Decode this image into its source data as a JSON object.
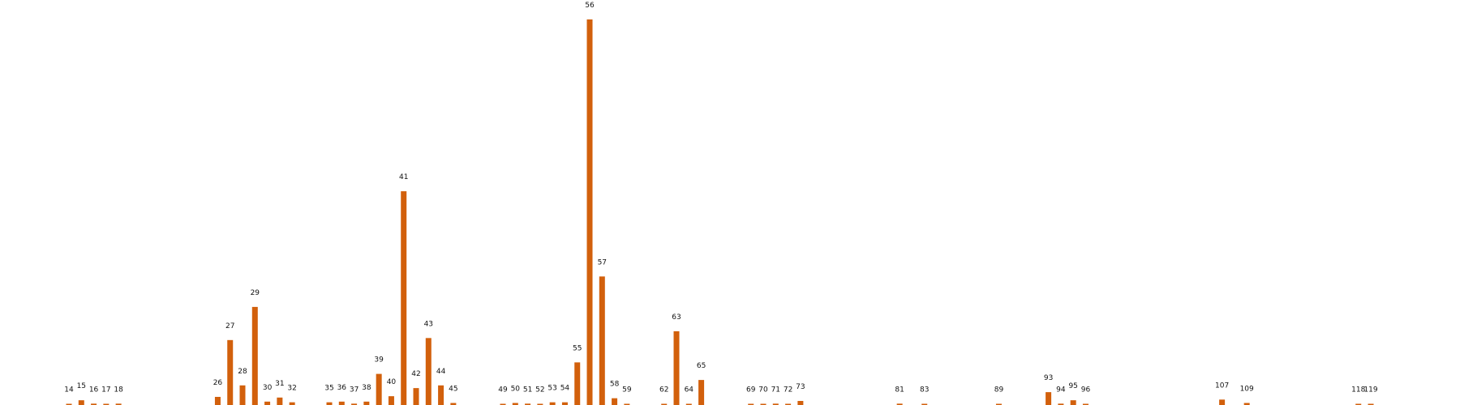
{
  "chart_data": {
    "type": "bar",
    "title": "",
    "xlabel": "",
    "ylabel": "",
    "bar_color": "#d2600c",
    "background": "#ffffff",
    "grid": false,
    "axes_visible": false,
    "ylim": [
      0,
      57
    ],
    "categories": [
      "14",
      "15",
      "16",
      "17",
      "18",
      "26",
      "27",
      "28",
      "29",
      "30",
      "31",
      "32",
      "35",
      "36",
      "37",
      "38",
      "39",
      "40",
      "41",
      "42",
      "43",
      "44",
      "45",
      "49",
      "50",
      "51",
      "52",
      "53",
      "54",
      "55",
      "56",
      "57",
      "58",
      "59",
      "62",
      "63",
      "64",
      "65",
      "69",
      "70",
      "71",
      "72",
      "73",
      "81",
      "83",
      "89",
      "93",
      "94",
      "95",
      "96",
      "107",
      "109",
      "118",
      "119"
    ],
    "x": [
      14,
      15,
      16,
      17,
      18,
      26,
      27,
      28,
      29,
      30,
      31,
      32,
      35,
      36,
      37,
      38,
      39,
      40,
      41,
      42,
      43,
      44,
      45,
      49,
      50,
      51,
      52,
      53,
      54,
      55,
      56,
      57,
      58,
      59,
      62,
      63,
      64,
      65,
      69,
      70,
      71,
      72,
      73,
      81,
      83,
      89,
      93,
      94,
      95,
      96,
      107,
      109,
      118,
      119
    ],
    "values": [
      0.1,
      0.7,
      0.2,
      0.0,
      0.2,
      1.2,
      9.6,
      2.9,
      14.5,
      0.5,
      1.1,
      0.4,
      0.4,
      0.5,
      0.2,
      0.5,
      4.6,
      1.3,
      31.6,
      2.5,
      9.9,
      2.9,
      0.3,
      0.1,
      0.3,
      0.2,
      0.0,
      0.4,
      0.4,
      6.3,
      57.0,
      19.0,
      1.0,
      0.0,
      0.0,
      10.9,
      0.1,
      3.7,
      0.1,
      0.1,
      0.2,
      0.0,
      0.6,
      0.2,
      0.0,
      0.0,
      1.9,
      0.2,
      0.7,
      0.0,
      0.8,
      0.3,
      0.0,
      0.1
    ]
  }
}
